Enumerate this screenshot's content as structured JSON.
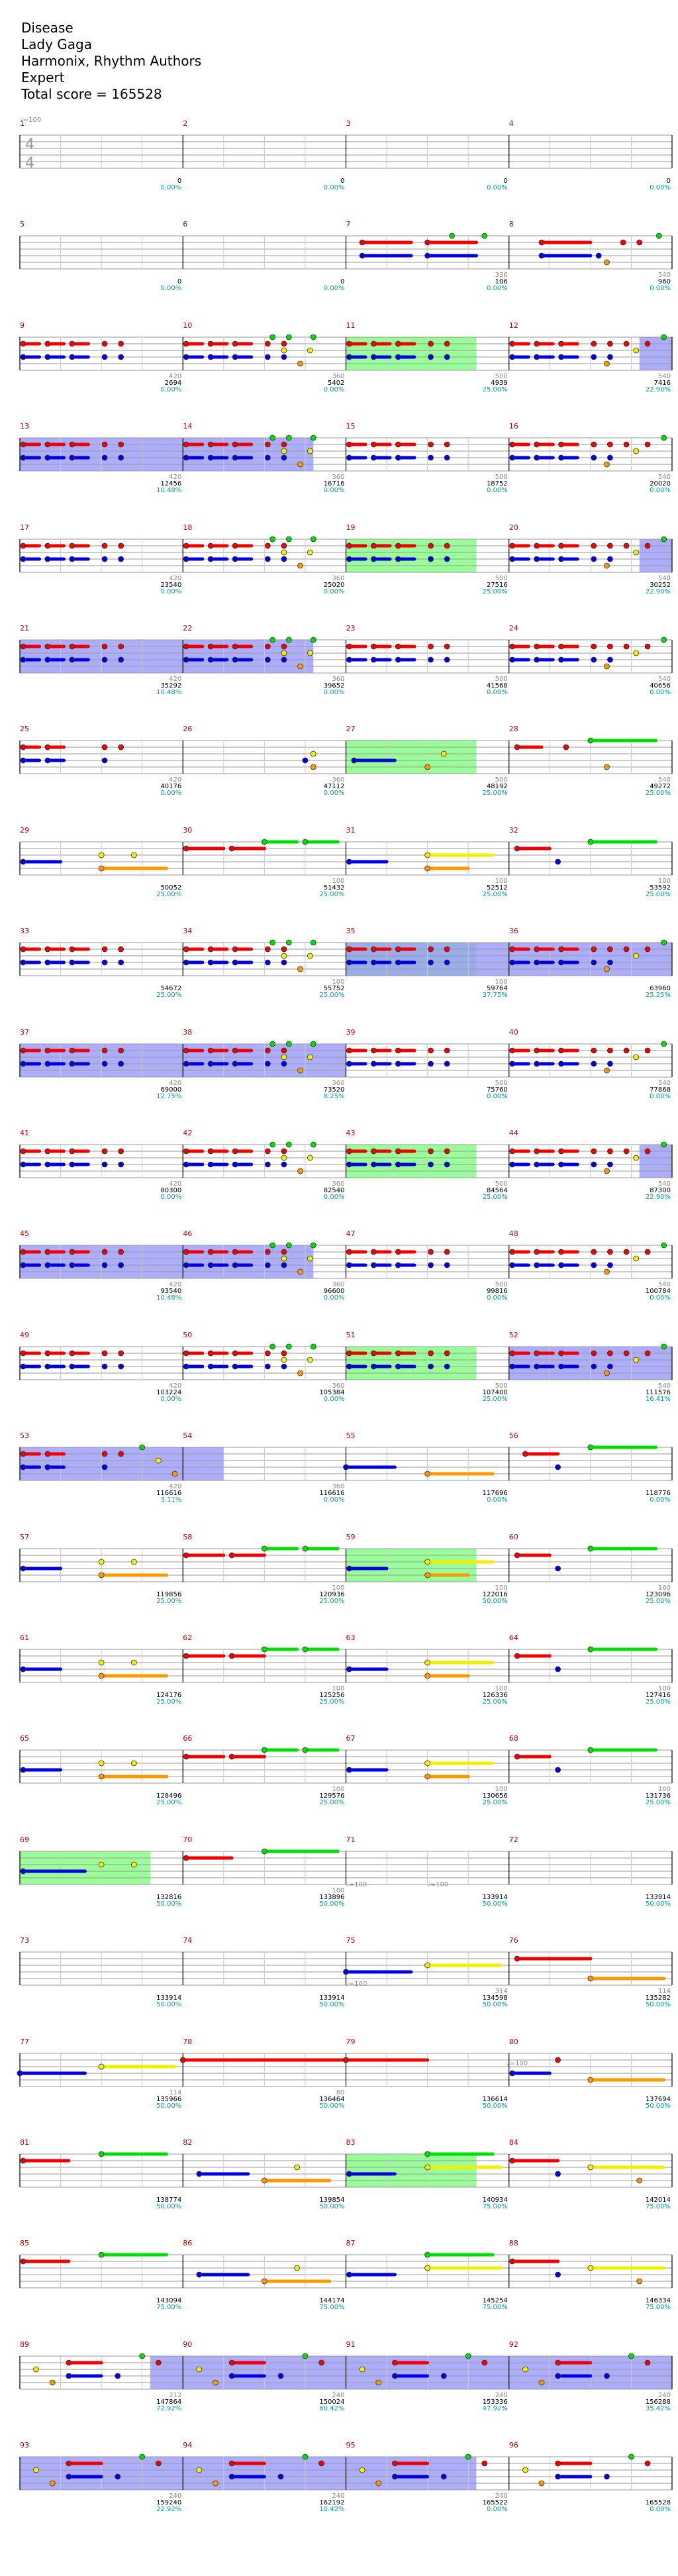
{
  "song": {
    "title": "Disease",
    "artist": "Lady Gaga",
    "authors": "Harmonix, Rhythm Authors",
    "difficulty": "Expert",
    "total_score": "Total score = 165528"
  },
  "time_signature": {
    "numerator": "4",
    "denominator": "4"
  },
  "tempo_marks": [
    "♩=100",
    "♩=100",
    "♩=100",
    "♩=100",
    "♩=100"
  ],
  "colors": {
    "staff": "#999999",
    "measure_num": "#c00000",
    "green": "#00dd00",
    "red": "#ee0000",
    "yellow": "#f0f000",
    "blue": "#0000dd",
    "orange": "#ff9900",
    "solo": "#7fff7f",
    "overdrive": "#9999ff",
    "percent": "#00a0a0"
  },
  "rows": [
    {
      "measures": [
        1,
        2,
        3,
        4
      ],
      "scores": [
        [
          "",
          "0",
          "0.00%"
        ],
        [
          "",
          "0",
          "0.00%"
        ],
        [
          "",
          "0",
          "0.00%"
        ],
        [
          "",
          "0",
          "0.00%"
        ]
      ]
    },
    {
      "measures": [
        5,
        6,
        7,
        8
      ],
      "scores": [
        [
          "",
          "0",
          "0.00%"
        ],
        [
          "",
          "0",
          "0.00%"
        ],
        [
          "336",
          "106",
          "0.00%"
        ],
        [
          "540",
          "960",
          "0.00%"
        ]
      ]
    },
    {
      "measures": [
        9,
        10,
        11,
        12
      ],
      "scores": [
        [
          "420",
          "2694",
          "0.00%"
        ],
        [
          "360",
          "5402",
          "0.00%"
        ],
        [
          "500",
          "4939",
          "25.00%"
        ],
        [
          "540",
          "7416",
          "22.90%"
        ]
      ]
    },
    {
      "measures": [
        13,
        14,
        15,
        16
      ],
      "scores": [
        [
          "420",
          "12456",
          "10.48%"
        ],
        [
          "360",
          "16716",
          "0.00%"
        ],
        [
          "500",
          "18752",
          "0.00%"
        ],
        [
          "540",
          "20020",
          "0.00%"
        ]
      ]
    },
    {
      "measures": [
        17,
        18,
        19,
        20
      ],
      "scores": [
        [
          "420",
          "23540",
          "0.00%"
        ],
        [
          "360",
          "25020",
          "0.00%"
        ],
        [
          "500",
          "27516",
          "25.00%"
        ],
        [
          "540",
          "30252",
          "22.90%"
        ]
      ]
    },
    {
      "measures": [
        21,
        22,
        23,
        24
      ],
      "scores": [
        [
          "420",
          "35292",
          "10.48%"
        ],
        [
          "360",
          "39652",
          "0.00%"
        ],
        [
          "500",
          "41568",
          "0.00%"
        ],
        [
          "540",
          "40656",
          "0.00%"
        ]
      ]
    },
    {
      "measures": [
        25,
        26,
        27,
        28
      ],
      "scores": [
        [
          "420",
          "40176",
          "0.00%"
        ],
        [
          "360",
          "47112",
          "0.00%"
        ],
        [
          "500",
          "48192",
          "25.00%"
        ],
        [
          "540",
          "49272",
          "25.00%"
        ]
      ]
    },
    {
      "measures": [
        29,
        30,
        31,
        32
      ],
      "scores": [
        [
          "",
          "50052",
          "25.00%"
        ],
        [
          "100",
          "51432",
          "25.00%"
        ],
        [
          "100",
          "52512",
          "25.00%"
        ],
        [
          "100",
          "53592",
          "25.00%"
        ]
      ]
    },
    {
      "measures": [
        33,
        34,
        35,
        36
      ],
      "scores": [
        [
          "",
          "54672",
          "25.00%"
        ],
        [
          "100",
          "55752",
          "25.00%"
        ],
        [
          "100",
          "59764",
          "37.75%"
        ],
        [
          "",
          "63960",
          "25.25%"
        ]
      ]
    },
    {
      "measures": [
        37,
        38,
        39,
        40
      ],
      "scores": [
        [
          "420",
          "69000",
          "12.75%"
        ],
        [
          "360",
          "73520",
          "8.25%"
        ],
        [
          "500",
          "75760",
          "0.00%"
        ],
        [
          "540",
          "77868",
          "0.00%"
        ]
      ]
    },
    {
      "measures": [
        41,
        42,
        43,
        44
      ],
      "scores": [
        [
          "420",
          "80300",
          "0.00%"
        ],
        [
          "360",
          "82540",
          "0.00%"
        ],
        [
          "500",
          "84564",
          "25.00%"
        ],
        [
          "540",
          "87300",
          "22.90%"
        ]
      ]
    },
    {
      "measures": [
        45,
        46,
        47,
        48
      ],
      "scores": [
        [
          "420",
          "93540",
          "10.48%"
        ],
        [
          "360",
          "96600",
          "0.00%"
        ],
        [
          "500",
          "99816",
          "0.00%"
        ],
        [
          "540",
          "100784",
          "0.00%"
        ]
      ]
    },
    {
      "measures": [
        49,
        50,
        51,
        52
      ],
      "scores": [
        [
          "420",
          "103224",
          "0.00%"
        ],
        [
          "360",
          "105384",
          "0.00%"
        ],
        [
          "500",
          "107400",
          "25.00%"
        ],
        [
          "540",
          "111576",
          "16.41%"
        ]
      ]
    },
    {
      "measures": [
        53,
        54,
        55,
        56
      ],
      "scores": [
        [
          "420",
          "116616",
          "3.11%"
        ],
        [
          "360",
          "116616",
          "0.00%"
        ],
        [
          "",
          "117696",
          "0.00%"
        ],
        [
          "",
          "118776",
          "0.00%"
        ]
      ]
    },
    {
      "measures": [
        57,
        58,
        59,
        60
      ],
      "scores": [
        [
          "",
          "119856",
          "25.00%"
        ],
        [
          "100",
          "120936",
          "25.00%"
        ],
        [
          "100",
          "122016",
          "50.00%"
        ],
        [
          "100",
          "123096",
          "25.00%"
        ]
      ]
    },
    {
      "measures": [
        61,
        62,
        63,
        64
      ],
      "scores": [
        [
          "",
          "124176",
          "25.00%"
        ],
        [
          "100",
          "125256",
          "25.00%"
        ],
        [
          "100",
          "126336",
          "25.00%"
        ],
        [
          "100",
          "127416",
          "25.00%"
        ]
      ]
    },
    {
      "measures": [
        65,
        66,
        67,
        68
      ],
      "scores": [
        [
          "",
          "128496",
          "25.00%"
        ],
        [
          "100",
          "129576",
          "25.00%"
        ],
        [
          "100",
          "130656",
          "25.00%"
        ],
        [
          "100",
          "131736",
          "25.00%"
        ]
      ]
    },
    {
      "measures": [
        69,
        70,
        71,
        72
      ],
      "scores": [
        [
          "",
          "132816",
          "50.00%"
        ],
        [
          "100",
          "133896",
          "50.00%"
        ],
        [
          "",
          "133914",
          "50.00%"
        ],
        [
          "",
          "133914",
          "50.00%"
        ]
      ]
    },
    {
      "measures": [
        73,
        74,
        75,
        76
      ],
      "scores": [
        [
          "",
          "133914",
          "50.00%"
        ],
        [
          "",
          "133914",
          "50.00%"
        ],
        [
          "314",
          "134598",
          "50.00%"
        ],
        [
          "114",
          "135282",
          "50.00%"
        ]
      ]
    },
    {
      "measures": [
        77,
        78,
        79,
        80
      ],
      "scores": [
        [
          "114",
          "135966",
          "50.00%"
        ],
        [
          "80",
          "136464",
          "50.00%"
        ],
        [
          "",
          "136614",
          "50.00%"
        ],
        [
          "",
          "137694",
          "50.00%"
        ]
      ]
    },
    {
      "measures": [
        81,
        82,
        83,
        84
      ],
      "scores": [
        [
          "",
          "138774",
          "50.00%"
        ],
        [
          "",
          "139854",
          "50.00%"
        ],
        [
          "",
          "140934",
          "75.00%"
        ],
        [
          "",
          "142014",
          "75.00%"
        ]
      ]
    },
    {
      "measures": [
        85,
        86,
        87,
        88
      ],
      "scores": [
        [
          "",
          "143094",
          "75.00%"
        ],
        [
          "",
          "144174",
          "75.00%"
        ],
        [
          "",
          "145254",
          "75.00%"
        ],
        [
          "",
          "146334",
          "75.00%"
        ]
      ]
    },
    {
      "measures": [
        89,
        90,
        91,
        92
      ],
      "scores": [
        [
          "212",
          "147864",
          "72.92%"
        ],
        [
          "240",
          "150024",
          "60.42%"
        ],
        [
          "240",
          "153336",
          "47.92%"
        ],
        [
          "240",
          "156288",
          "35.42%"
        ]
      ]
    },
    {
      "measures": [
        93,
        94,
        95,
        96
      ],
      "scores": [
        [
          "240",
          "159240",
          "22.92%"
        ],
        [
          "240",
          "162192",
          "10.42%"
        ],
        [
          "240",
          "165522",
          "0.00%"
        ],
        [
          "",
          "165528",
          "0.00%"
        ]
      ]
    }
  ]
}
